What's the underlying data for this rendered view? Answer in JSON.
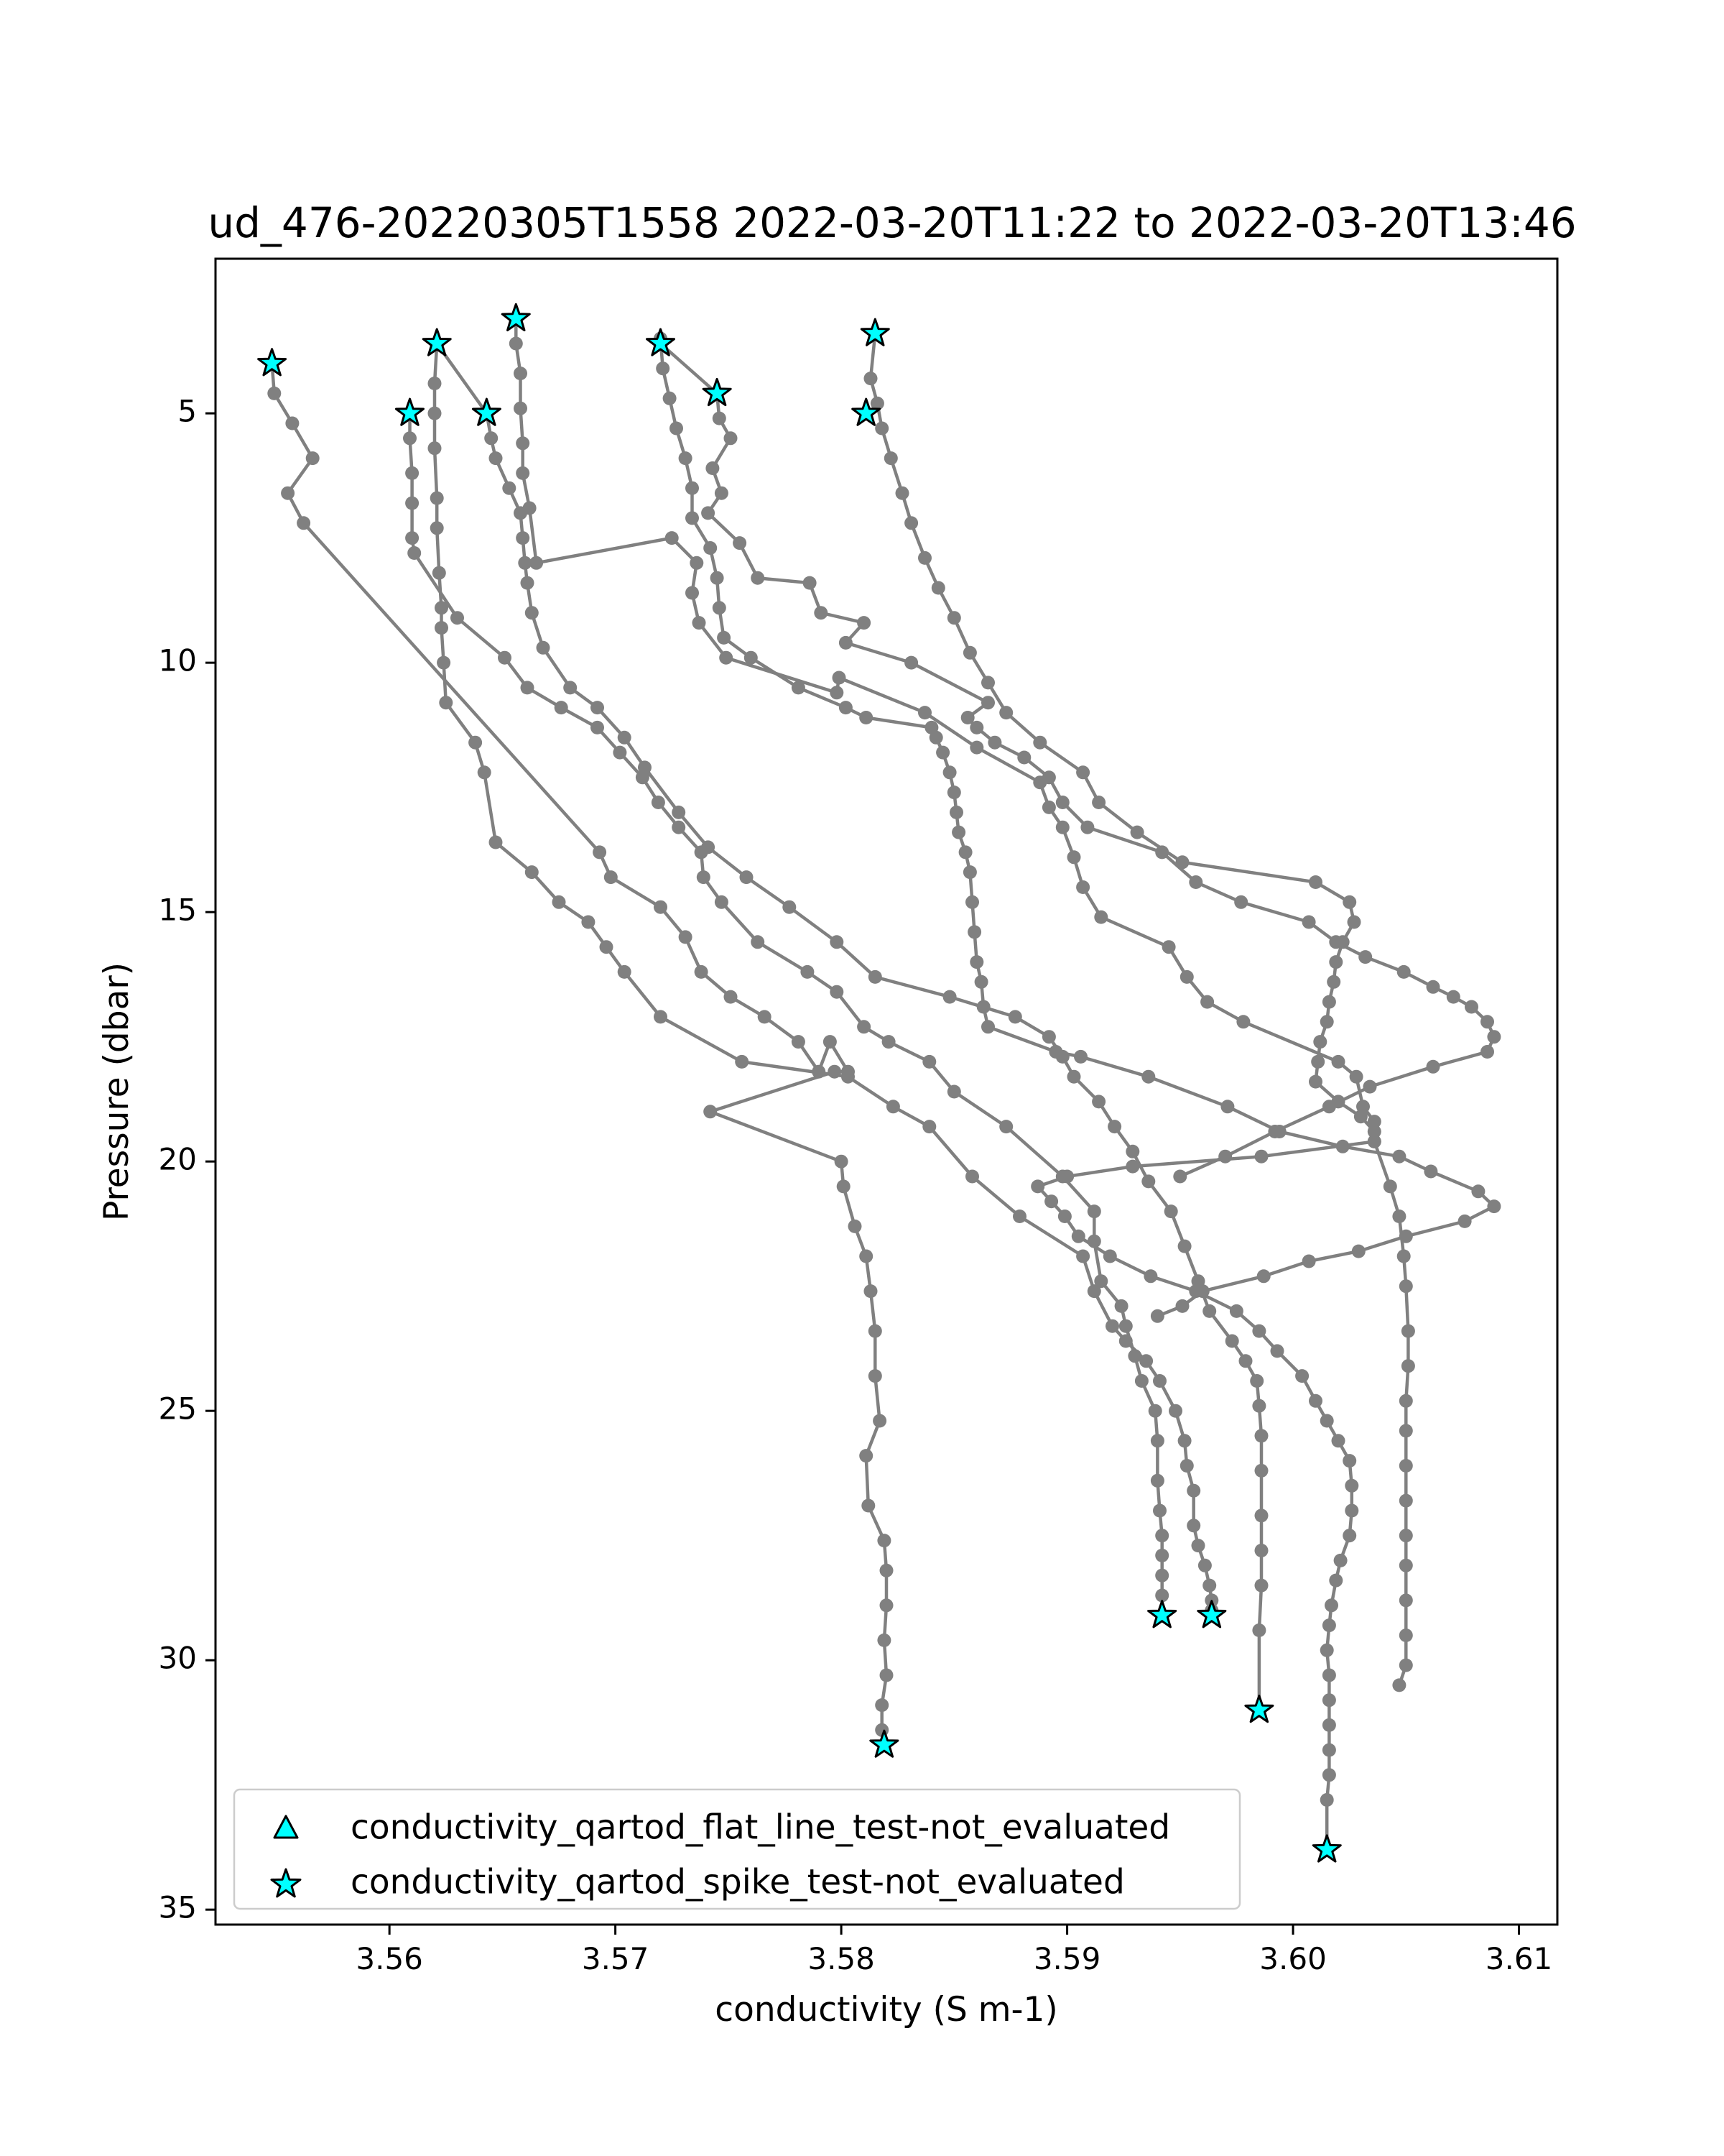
{
  "chart_data": {
    "type": "line",
    "title": "ud_476-20220305T1558 2022-03-20T11:22 to 2022-03-20T13:46",
    "xlabel": "conductivity (S m-1)",
    "ylabel": "Pressure (dbar)",
    "xlim": [
      3.5523,
      3.6117
    ],
    "ylim": [
      35.3,
      1.9
    ],
    "y_inverted": true,
    "grid": false,
    "legend_position": "lower-left",
    "xticks": [
      "3.56",
      "3.57",
      "3.58",
      "3.59",
      "3.60",
      "3.61"
    ],
    "yticks": [
      "5",
      "10",
      "15",
      "20",
      "25",
      "30",
      "35"
    ],
    "xtick_values": [
      3.56,
      3.57,
      3.58,
      3.59,
      3.6,
      3.61
    ],
    "ytick_values": [
      5,
      10,
      15,
      20,
      25,
      30,
      35
    ],
    "line_color": "#808080",
    "marker_fill": "#00ffff",
    "marker_edge": "#000000",
    "legend": [
      {
        "label": "conductivity_qartod_flat_line_test-not_evaluated",
        "marker": "triangle-up"
      },
      {
        "label": "conductivity_qartod_spike_test-not_evaluated",
        "marker": "star"
      }
    ],
    "series": [
      {
        "x": [
          3.5548,
          3.5549,
          3.5557,
          3.5566,
          3.5555,
          3.5562,
          3.5693,
          3.5698,
          3.572,
          3.5731,
          3.5738,
          3.5751,
          3.5766,
          3.5781,
          3.579,
          3.5795,
          3.5803,
          3.5797,
          3.5742,
          3.58,
          3.5801,
          3.5806,
          3.5811,
          3.5813,
          3.5815,
          3.5815,
          3.5817,
          3.5811,
          3.5812,
          3.5819,
          3.582,
          3.582,
          3.5819,
          3.582,
          3.5818,
          3.5818,
          3.5819
        ],
        "y": [
          4.0,
          4.6,
          5.2,
          5.9,
          6.6,
          7.2,
          13.8,
          14.3,
          14.9,
          15.5,
          16.2,
          16.7,
          17.1,
          17.6,
          18.2,
          17.6,
          18.2,
          18.2,
          19.0,
          20.0,
          20.5,
          21.3,
          21.9,
          22.6,
          23.4,
          24.3,
          25.2,
          25.9,
          26.9,
          27.6,
          28.2,
          28.9,
          29.6,
          30.3,
          30.9,
          31.4,
          31.7
        ]
      },
      {
        "x": [
          3.5609,
          3.5609,
          3.561,
          3.561,
          3.561,
          3.5611,
          3.563,
          3.5651,
          3.5661,
          3.5676,
          3.5692,
          3.5702,
          3.5712,
          3.5719,
          3.5728,
          3.5738,
          3.5739,
          3.5747,
          3.5763,
          3.5785,
          3.5798,
          3.581,
          3.5821,
          3.5839,
          3.585,
          3.5873,
          3.5898,
          3.5912,
          3.5912,
          3.5915,
          3.5924,
          3.5926,
          3.593,
          3.5933,
          3.5939,
          3.594,
          3.594,
          3.5941,
          3.5942,
          3.5942,
          3.5942,
          3.5942,
          3.5942
        ],
        "y": [
          5.0,
          5.5,
          6.2,
          6.8,
          7.5,
          7.8,
          9.1,
          9.9,
          10.5,
          10.9,
          11.3,
          11.8,
          12.3,
          12.8,
          13.3,
          13.8,
          14.3,
          14.8,
          15.6,
          16.2,
          16.6,
          17.3,
          17.6,
          18.0,
          18.6,
          19.3,
          20.3,
          21.0,
          21.6,
          22.4,
          22.9,
          23.3,
          23.9,
          24.4,
          25.0,
          25.6,
          26.4,
          27.0,
          27.5,
          27.9,
          28.3,
          28.7,
          29.1
        ]
      },
      {
        "x": [
          3.5621,
          3.562,
          3.562,
          3.562,
          3.5621,
          3.5621,
          3.5622,
          3.5623,
          3.5623,
          3.5624,
          3.5625,
          3.5638,
          3.5642,
          3.5647,
          3.5663,
          3.5675,
          3.5688,
          3.5696,
          3.5704,
          3.572,
          3.5756,
          3.5803,
          3.5823,
          3.5839,
          3.5858,
          3.5879,
          3.5907,
          3.5912,
          3.592,
          3.5926,
          3.5935,
          3.5941,
          3.5948,
          3.5952,
          3.5953,
          3.5956,
          3.5956,
          3.5958,
          3.5961,
          3.5963,
          3.5964,
          3.5964,
          3.5964,
          3.5964
        ],
        "y": [
          3.6,
          4.4,
          5.0,
          5.7,
          6.7,
          7.3,
          8.2,
          8.9,
          9.3,
          10.0,
          10.8,
          11.6,
          12.2,
          13.6,
          14.2,
          14.8,
          15.2,
          15.7,
          16.2,
          17.1,
          18.0,
          18.3,
          18.9,
          19.3,
          20.3,
          21.1,
          21.9,
          22.6,
          23.3,
          23.6,
          24.0,
          24.4,
          25.0,
          25.6,
          26.1,
          26.6,
          27.3,
          27.7,
          28.1,
          28.5,
          28.8,
          29.0,
          29.1,
          29.1
        ]
      },
      {
        "x": [
          3.5621,
          3.5643,
          3.5645,
          3.5647,
          3.5653,
          3.5658,
          3.5659,
          3.566,
          3.5661,
          3.5663,
          3.5668,
          3.568,
          3.5692,
          3.5704,
          3.5713,
          3.5728,
          3.5741,
          3.5758,
          3.5777,
          3.5798,
          3.5815,
          3.5848,
          3.5877,
          3.5892,
          3.5898,
          3.5903,
          3.5914,
          3.5921,
          3.5929,
          3.5936,
          3.5946,
          3.5952,
          3.5958,
          3.5963,
          3.5973,
          3.5979,
          3.5984,
          3.5985,
          3.5986,
          3.5986,
          3.5986,
          3.5986,
          3.5986,
          3.5985,
          3.5985
        ],
        "y": [
          3.6,
          5.0,
          5.5,
          5.9,
          6.5,
          7.0,
          7.5,
          8.0,
          8.4,
          9.0,
          9.7,
          10.5,
          10.9,
          11.5,
          12.1,
          13.0,
          13.7,
          14.3,
          14.9,
          15.6,
          16.3,
          16.7,
          17.1,
          17.5,
          17.9,
          18.3,
          18.8,
          19.3,
          19.8,
          20.4,
          21.0,
          21.7,
          22.4,
          23.0,
          23.6,
          24.0,
          24.4,
          24.9,
          25.5,
          26.2,
          27.1,
          27.8,
          28.5,
          29.4,
          31.0
        ]
      },
      {
        "x": [
          3.5656,
          3.5656,
          3.5658,
          3.5658,
          3.5659,
          3.5659,
          3.5662,
          3.5665,
          3.5725,
          3.5736,
          3.5734,
          3.5737,
          3.5749,
          3.5798,
          3.5799,
          3.5837,
          3.586,
          3.5888,
          3.5892,
          3.5898,
          3.5903,
          3.5907,
          3.5915,
          3.5945,
          3.5953,
          3.5962,
          3.5978,
          3.602,
          3.6028,
          3.6031,
          3.6036,
          3.6036,
          3.6043,
          3.6047,
          3.6049,
          3.605,
          3.6051,
          3.6051,
          3.605,
          3.605,
          3.605,
          3.605,
          3.605,
          3.605,
          3.605,
          3.605,
          3.605,
          3.6047
        ],
        "y": [
          3.1,
          3.6,
          4.2,
          4.9,
          5.6,
          6.2,
          6.9,
          8.0,
          7.5,
          8.0,
          8.6,
          9.2,
          9.9,
          10.6,
          10.3,
          11.0,
          11.7,
          12.4,
          12.9,
          13.3,
          13.9,
          14.5,
          15.1,
          15.7,
          16.3,
          16.8,
          17.2,
          18.0,
          18.3,
          18.9,
          19.2,
          19.6,
          20.5,
          21.1,
          21.9,
          22.5,
          23.4,
          24.1,
          24.8,
          25.4,
          26.1,
          26.8,
          27.5,
          28.1,
          28.8,
          29.5,
          30.1,
          30.5
        ]
      },
      {
        "x": [
          3.572,
          3.5721,
          3.5724,
          3.5727,
          3.5731,
          3.5734,
          3.5734,
          3.5742,
          3.5745,
          3.5746,
          3.5748,
          3.576,
          3.5781,
          3.5802,
          3.5811,
          3.584,
          3.5842,
          3.5845,
          3.5848,
          3.585,
          3.5851,
          3.5852,
          3.5855,
          3.5857,
          3.5858,
          3.5859,
          3.586,
          3.5862,
          3.5863,
          3.5865,
          3.5895,
          3.5906,
          3.5936,
          3.5971,
          3.5994,
          3.6022,
          3.6047,
          3.6061,
          3.6082,
          3.6089,
          3.6076,
          3.605,
          3.6029,
          3.6007,
          3.5987,
          3.596,
          3.5951,
          3.594
        ],
        "y": [
          3.5,
          4.1,
          4.7,
          5.3,
          5.9,
          6.5,
          7.1,
          7.7,
          8.3,
          8.9,
          9.5,
          9.9,
          10.5,
          10.9,
          11.1,
          11.3,
          11.5,
          11.8,
          12.2,
          12.6,
          13.0,
          13.4,
          13.8,
          14.2,
          14.8,
          15.4,
          16.0,
          16.4,
          16.9,
          17.3,
          17.8,
          17.9,
          18.3,
          18.9,
          19.4,
          19.7,
          19.9,
          20.2,
          20.6,
          20.9,
          21.2,
          21.5,
          21.8,
          22.0,
          22.3,
          22.6,
          22.9,
          23.1
        ]
      },
      {
        "x": [
          3.572,
          3.5745,
          3.5746,
          3.5751,
          3.5743,
          3.5747,
          3.5741,
          3.5755,
          3.5763,
          3.5786,
          3.5791,
          3.581,
          3.5802,
          3.5831,
          3.5865,
          3.5856,
          3.586,
          3.5868,
          3.5881,
          3.5892,
          3.5898,
          3.5909,
          3.5942,
          3.5957,
          3.5977,
          3.6007,
          3.6019,
          3.6032,
          3.6049,
          3.6062,
          3.6071,
          3.6079,
          3.6086,
          3.6089,
          3.6086,
          3.6062,
          3.6034,
          3.6016,
          3.5992,
          3.597,
          3.595
        ],
        "y": [
          3.6,
          4.6,
          5.1,
          5.5,
          6.1,
          6.6,
          7.0,
          7.6,
          8.3,
          8.4,
          9.0,
          9.2,
          9.6,
          10.0,
          10.8,
          11.1,
          11.3,
          11.6,
          11.9,
          12.3,
          12.8,
          13.3,
          13.8,
          14.4,
          14.8,
          15.2,
          15.6,
          15.9,
          16.2,
          16.5,
          16.7,
          16.9,
          17.2,
          17.5,
          17.8,
          18.1,
          18.5,
          18.9,
          19.4,
          19.9,
          20.3
        ]
      },
      {
        "x": [
          3.5815,
          3.5813,
          3.5816,
          3.5818,
          3.5822,
          3.5827,
          3.5831,
          3.5837,
          3.5843,
          3.585,
          3.5857,
          3.5865,
          3.5873,
          3.5888,
          3.5907,
          3.5914,
          3.5931,
          3.5951,
          3.601,
          3.6025,
          3.6027,
          3.6022,
          3.6019,
          3.6018,
          3.6016,
          3.6015,
          3.6012,
          3.6011,
          3.601,
          3.602,
          3.603,
          3.6036,
          3.6036,
          3.5986,
          3.5929,
          3.59,
          3.5887,
          3.5893,
          3.5899,
          3.5905,
          3.5919,
          3.5937,
          3.5957,
          3.5975,
          3.5985,
          3.5993,
          3.6004,
          3.601,
          3.6015,
          3.602,
          3.6025,
          3.6026,
          3.6026,
          3.6025,
          3.6021,
          3.6019,
          3.6017,
          3.6016,
          3.6015,
          3.6016,
          3.6016,
          3.6016,
          3.6016,
          3.6016,
          3.6015,
          3.6015
        ],
        "y": [
          3.4,
          4.3,
          4.8,
          5.3,
          5.9,
          6.6,
          7.2,
          7.9,
          8.5,
          9.1,
          9.8,
          10.4,
          11.0,
          11.6,
          12.2,
          12.8,
          13.4,
          14.0,
          14.4,
          14.8,
          15.2,
          15.6,
          16.0,
          16.4,
          16.8,
          17.2,
          17.6,
          18.0,
          18.4,
          18.8,
          19.1,
          19.4,
          19.6,
          19.9,
          20.1,
          20.3,
          20.5,
          20.8,
          21.1,
          21.5,
          21.9,
          22.3,
          22.6,
          23.0,
          23.4,
          23.8,
          24.3,
          24.8,
          25.2,
          25.6,
          26.0,
          26.5,
          27.0,
          27.5,
          28.0,
          28.4,
          28.9,
          29.3,
          29.8,
          30.3,
          30.8,
          31.3,
          31.8,
          32.3,
          32.8,
          33.8
        ]
      }
    ],
    "spike_markers": [
      {
        "x": 3.5548,
        "y": 4.0
      },
      {
        "x": 3.5621,
        "y": 3.6
      },
      {
        "x": 3.5656,
        "y": 3.1
      },
      {
        "x": 3.572,
        "y": 3.6
      },
      {
        "x": 3.5815,
        "y": 3.4
      },
      {
        "x": 3.5609,
        "y": 5.0
      },
      {
        "x": 3.5643,
        "y": 5.0
      },
      {
        "x": 3.5745,
        "y": 4.6
      },
      {
        "x": 3.5811,
        "y": 5.0
      },
      {
        "x": 3.5942,
        "y": 29.1
      },
      {
        "x": 3.5964,
        "y": 29.1
      },
      {
        "x": 3.5985,
        "y": 31.0
      },
      {
        "x": 3.5819,
        "y": 31.7
      },
      {
        "x": 3.6015,
        "y": 33.8
      }
    ]
  }
}
